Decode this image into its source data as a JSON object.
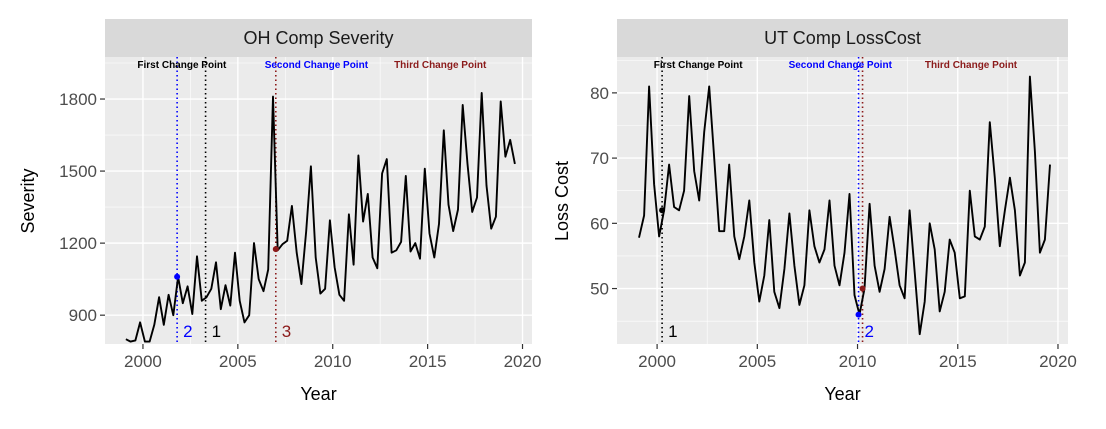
{
  "chart_data": [
    {
      "type": "line",
      "title": "OH Comp Severity",
      "xlabel": "Year",
      "ylabel": "Severity",
      "xlim": [
        1998.0,
        2020.5
      ],
      "ylim": [
        780,
        1975
      ],
      "xticks": [
        2000,
        2005,
        2010,
        2015,
        2020
      ],
      "xtick_labels": [
        "2000",
        "2005",
        "2010",
        "2015",
        "2020"
      ],
      "yticks": [
        900,
        1200,
        1500,
        1800
      ],
      "ytick_labels": [
        "900",
        "1200",
        "1500",
        "1800"
      ],
      "grid": true,
      "series": [
        {
          "color": "#000000",
          "x": [
            1999.1,
            1999.35,
            1999.6,
            1999.85,
            2000.1,
            2000.35,
            2000.6,
            2000.85,
            2001.1,
            2001.35,
            2001.6,
            2001.85,
            2002.1,
            2002.35,
            2002.6,
            2002.85,
            2003.1,
            2003.35,
            2003.6,
            2003.85,
            2004.1,
            2004.35,
            2004.6,
            2004.85,
            2005.1,
            2005.35,
            2005.6,
            2005.85,
            2006.1,
            2006.35,
            2006.6,
            2006.85,
            2007.1,
            2007.35,
            2007.6,
            2007.85,
            2008.1,
            2008.35,
            2008.6,
            2008.85,
            2009.1,
            2009.35,
            2009.6,
            2009.85,
            2010.1,
            2010.35,
            2010.6,
            2010.85,
            2011.1,
            2011.35,
            2011.6,
            2011.85,
            2012.1,
            2012.35,
            2012.6,
            2012.85,
            2013.1,
            2013.35,
            2013.6,
            2013.85,
            2014.1,
            2014.35,
            2014.6,
            2014.85,
            2015.1,
            2015.35,
            2015.6,
            2015.85,
            2016.1,
            2016.35,
            2016.6,
            2016.85,
            2017.1,
            2017.35,
            2017.6,
            2017.85,
            2018.1,
            2018.35,
            2018.6,
            2018.85,
            2019.1,
            2019.35,
            2019.6
          ],
          "y": [
            800,
            790,
            795,
            870,
            790,
            790,
            860,
            975,
            860,
            985,
            900,
            1060,
            950,
            1020,
            905,
            1145,
            960,
            975,
            1010,
            1120,
            925,
            1025,
            940,
            1160,
            960,
            870,
            900,
            1200,
            1050,
            1000,
            1090,
            1810,
            1170,
            1195,
            1210,
            1355,
            1160,
            1030,
            1250,
            1520,
            1140,
            990,
            1010,
            1295,
            1100,
            985,
            960,
            1320,
            1110,
            1565,
            1290,
            1405,
            1140,
            1095,
            1490,
            1550,
            1160,
            1170,
            1205,
            1480,
            1165,
            1200,
            1135,
            1510,
            1240,
            1140,
            1280,
            1670,
            1360,
            1250,
            1340,
            1775,
            1530,
            1330,
            1390,
            1825,
            1440,
            1260,
            1310,
            1790,
            1560,
            1630,
            1530
          ]
        }
      ],
      "change_points": [
        {
          "x": 2003.3,
          "color": "#000000",
          "label": "First Change Point",
          "number": "1"
        },
        {
          "x": 2001.8,
          "y": 1060,
          "color": "#0000ff",
          "label": "Second Change Point",
          "number": "2"
        },
        {
          "x": 2007.0,
          "y": 1175,
          "color": "#8b1a1a",
          "label": "Third Change Point",
          "number": "3"
        }
      ]
    },
    {
      "type": "line",
      "title": "UT Comp LossCost",
      "xlabel": "Year",
      "ylabel": "Loss Cost",
      "xlim": [
        1998.0,
        2020.5
      ],
      "ylim": [
        41.5,
        85.5
      ],
      "xticks": [
        2000,
        2005,
        2010,
        2015,
        2020
      ],
      "xtick_labels": [
        "2000",
        "2005",
        "2010",
        "2015",
        "2020"
      ],
      "yticks": [
        50,
        60,
        70,
        80
      ],
      "ytick_labels": [
        "50",
        "60",
        "70",
        "80"
      ],
      "grid": true,
      "series": [
        {
          "color": "#000000",
          "x": [
            1999.1,
            1999.35,
            1999.6,
            1999.85,
            2000.1,
            2000.35,
            2000.6,
            2000.85,
            2001.1,
            2001.35,
            2001.6,
            2001.85,
            2002.1,
            2002.35,
            2002.6,
            2002.85,
            2003.1,
            2003.35,
            2003.6,
            2003.85,
            2004.1,
            2004.35,
            2004.6,
            2004.85,
            2005.1,
            2005.35,
            2005.6,
            2005.85,
            2006.1,
            2006.35,
            2006.6,
            2006.85,
            2007.1,
            2007.35,
            2007.6,
            2007.85,
            2008.1,
            2008.35,
            2008.6,
            2008.85,
            2009.1,
            2009.35,
            2009.6,
            2009.85,
            2010.1,
            2010.35,
            2010.6,
            2010.85,
            2011.1,
            2011.35,
            2011.6,
            2011.85,
            2012.1,
            2012.35,
            2012.6,
            2012.85,
            2013.1,
            2013.35,
            2013.6,
            2013.85,
            2014.1,
            2014.35,
            2014.6,
            2014.85,
            2015.1,
            2015.35,
            2015.6,
            2015.85,
            2016.1,
            2016.35,
            2016.6,
            2016.85,
            2017.1,
            2017.35,
            2017.6,
            2017.85,
            2018.1,
            2018.35,
            2018.6,
            2018.85,
            2019.1,
            2019.35,
            2019.6
          ],
          "y": [
            57.8,
            61.2,
            81.0,
            66.0,
            58.0,
            62.0,
            69.0,
            62.5,
            62.0,
            65.0,
            79.5,
            68.0,
            63.5,
            74.0,
            81.0,
            70.0,
            58.8,
            58.8,
            69.0,
            58.0,
            54.5,
            58.0,
            63.5,
            54.0,
            48.0,
            52.0,
            60.5,
            49.5,
            47.0,
            53.0,
            61.5,
            53.5,
            47.5,
            50.5,
            62.0,
            56.5,
            54.0,
            56.0,
            63.5,
            53.5,
            50.5,
            55.5,
            64.5,
            49.0,
            46.0,
            50.0,
            63.0,
            53.5,
            49.5,
            53.0,
            61.0,
            56.0,
            50.5,
            48.5,
            62.0,
            52.5,
            43.0,
            48.0,
            60.0,
            56.0,
            46.5,
            49.5,
            57.5,
            55.5,
            48.5,
            48.8,
            65.0,
            58.0,
            57.5,
            59.5,
            75.5,
            67.0,
            56.5,
            62.0,
            67.0,
            62.0,
            52.0,
            54.0,
            82.5,
            71.0,
            55.5,
            57.5,
            69.0
          ]
        }
      ],
      "change_points": [
        {
          "x": 2000.25,
          "y": 62,
          "color": "#000000",
          "label": "First Change Point",
          "number": "1"
        },
        {
          "x": 2010.05,
          "y": 46,
          "color": "#0000ff",
          "label": "Second Change Point",
          "number": "2"
        },
        {
          "x": 2010.25,
          "y": 50,
          "color": "#8b1a1a",
          "label": "Third Change Point"
        }
      ]
    }
  ]
}
